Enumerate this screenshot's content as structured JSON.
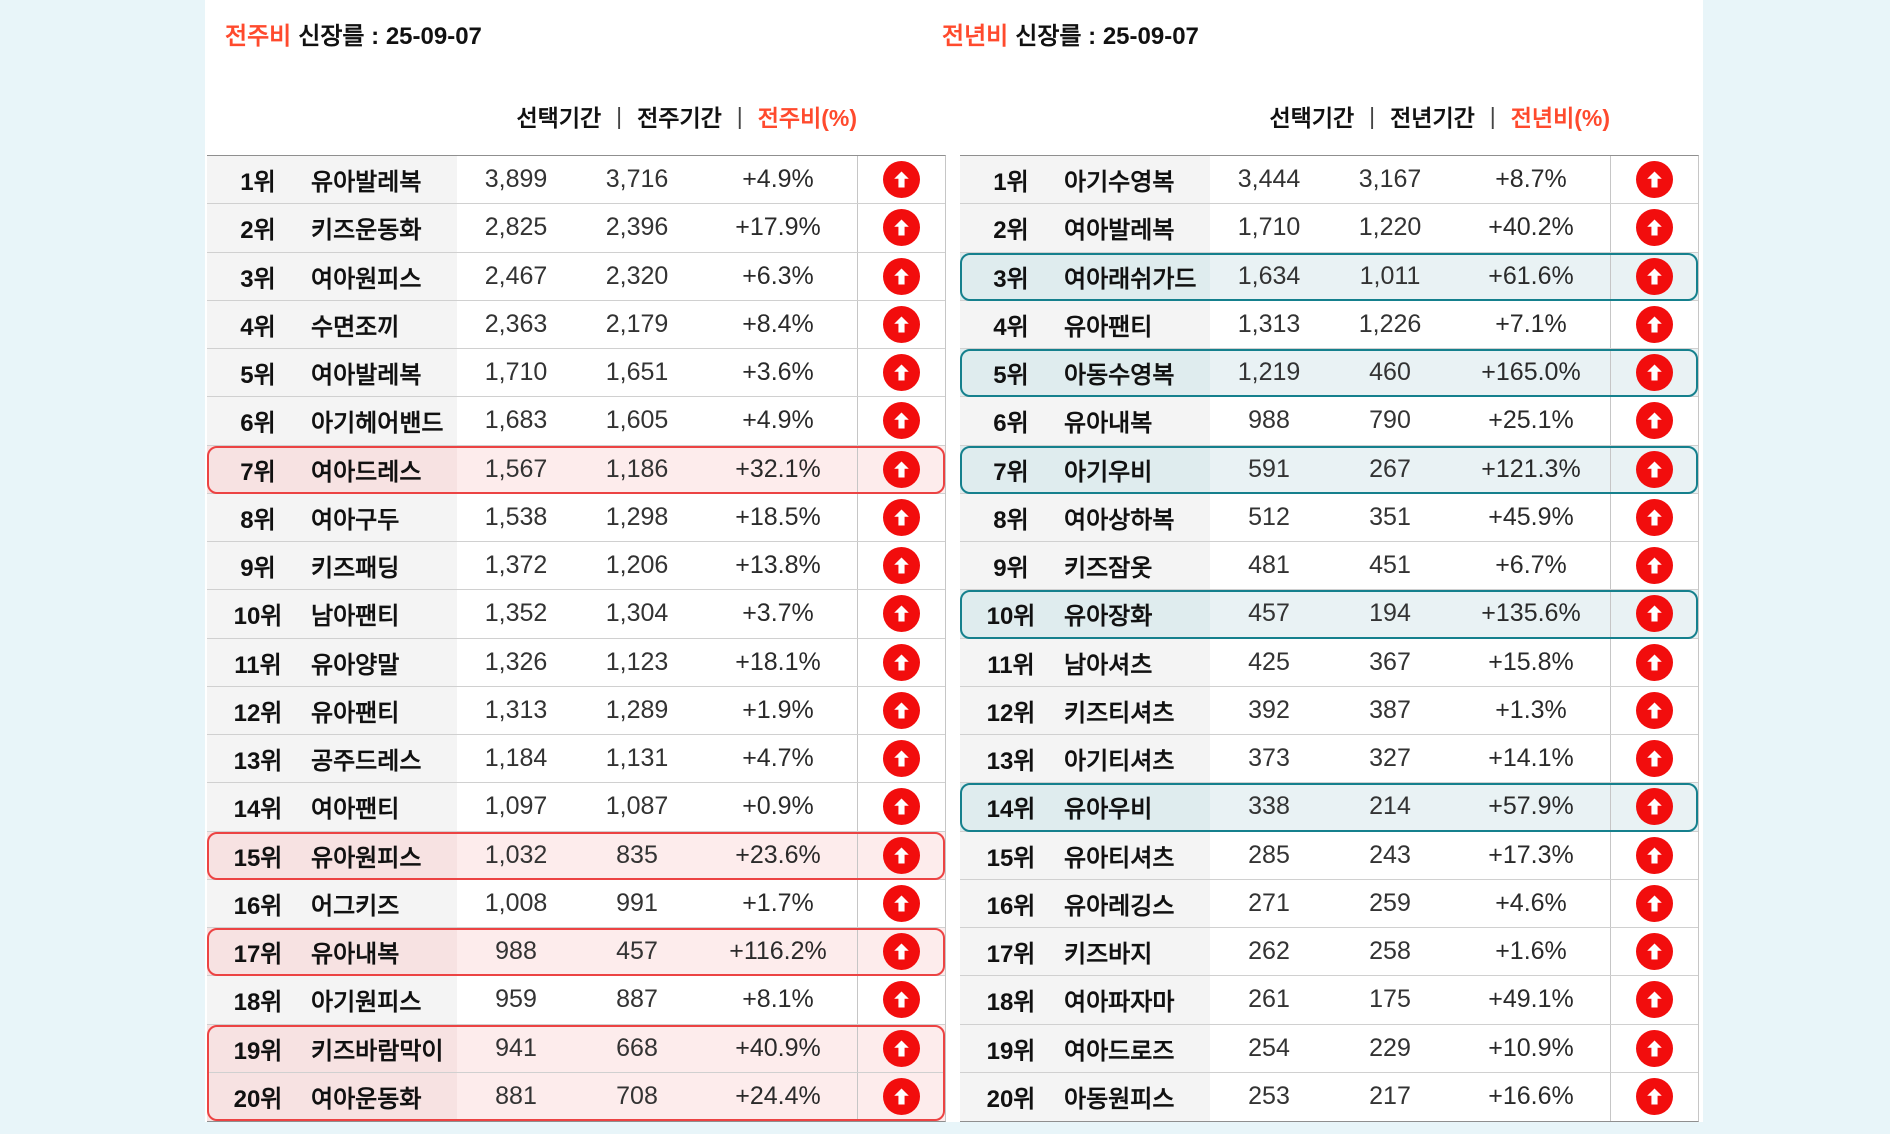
{
  "page": {
    "background_color": "#e8f5f9",
    "panel_color": "#ffffff",
    "accent_color": "#ff4a2d",
    "arrow_color": "#f20d0d",
    "icons": {
      "growth": "up-arrow-in-red-circle"
    }
  },
  "left": {
    "title_accent": "전주비",
    "title_rest": "신장를 : 25-09-07",
    "headers": [
      "선택기간",
      "전주기간",
      "전주비(%)"
    ],
    "pipe": "|",
    "highlight_border": "#ec4343",
    "rows": [
      {
        "rank": "1위",
        "name": "유아발레복",
        "current": "3,899",
        "prev": "3,716",
        "pct": "+4.9%",
        "hl": false
      },
      {
        "rank": "2위",
        "name": "키즈운동화",
        "current": "2,825",
        "prev": "2,396",
        "pct": "+17.9%",
        "hl": false
      },
      {
        "rank": "3위",
        "name": "여아원피스",
        "current": "2,467",
        "prev": "2,320",
        "pct": "+6.3%",
        "hl": false
      },
      {
        "rank": "4위",
        "name": "수면조끼",
        "current": "2,363",
        "prev": "2,179",
        "pct": "+8.4%",
        "hl": false
      },
      {
        "rank": "5위",
        "name": "여아발레복",
        "current": "1,710",
        "prev": "1,651",
        "pct": "+3.6%",
        "hl": false
      },
      {
        "rank": "6위",
        "name": "아기헤어밴드",
        "current": "1,683",
        "prev": "1,605",
        "pct": "+4.9%",
        "hl": false
      },
      {
        "rank": "7위",
        "name": "여아드레스",
        "current": "1,567",
        "prev": "1,186",
        "pct": "+32.1%",
        "hl": true
      },
      {
        "rank": "8위",
        "name": "여아구두",
        "current": "1,538",
        "prev": "1,298",
        "pct": "+18.5%",
        "hl": false
      },
      {
        "rank": "9위",
        "name": "키즈패딩",
        "current": "1,372",
        "prev": "1,206",
        "pct": "+13.8%",
        "hl": false
      },
      {
        "rank": "10위",
        "name": "남아팬티",
        "current": "1,352",
        "prev": "1,304",
        "pct": "+3.7%",
        "hl": false
      },
      {
        "rank": "11위",
        "name": "유아양말",
        "current": "1,326",
        "prev": "1,123",
        "pct": "+18.1%",
        "hl": false
      },
      {
        "rank": "12위",
        "name": "유아팬티",
        "current": "1,313",
        "prev": "1,289",
        "pct": "+1.9%",
        "hl": false
      },
      {
        "rank": "13위",
        "name": "공주드레스",
        "current": "1,184",
        "prev": "1,131",
        "pct": "+4.7%",
        "hl": false
      },
      {
        "rank": "14위",
        "name": "여아팬티",
        "current": "1,097",
        "prev": "1,087",
        "pct": "+0.9%",
        "hl": false
      },
      {
        "rank": "15위",
        "name": "유아원피스",
        "current": "1,032",
        "prev": "835",
        "pct": "+23.6%",
        "hl": true
      },
      {
        "rank": "16위",
        "name": "어그키즈",
        "current": "1,008",
        "prev": "991",
        "pct": "+1.7%",
        "hl": false
      },
      {
        "rank": "17위",
        "name": "유아내복",
        "current": "988",
        "prev": "457",
        "pct": "+116.2%",
        "hl": true
      },
      {
        "rank": "18위",
        "name": "아기원피스",
        "current": "959",
        "prev": "887",
        "pct": "+8.1%",
        "hl": false
      },
      {
        "rank": "19위",
        "name": "키즈바람막이",
        "current": "941",
        "prev": "668",
        "pct": "+40.9%",
        "hl": true
      },
      {
        "rank": "20위",
        "name": "여아운동화",
        "current": "881",
        "prev": "708",
        "pct": "+24.4%",
        "hl": true
      }
    ]
  },
  "right": {
    "title_accent": "전년비",
    "title_rest": "신장를 : 25-09-07",
    "headers": [
      "선택기간",
      "전년기간",
      "전년비(%)"
    ],
    "pipe": "|",
    "highlight_border": "#15808d",
    "rows": [
      {
        "rank": "1위",
        "name": "아기수영복",
        "current": "3,444",
        "prev": "3,167",
        "pct": "+8.7%",
        "hl": false
      },
      {
        "rank": "2위",
        "name": "여아발레복",
        "current": "1,710",
        "prev": "1,220",
        "pct": "+40.2%",
        "hl": false
      },
      {
        "rank": "3위",
        "name": "여아래쉬가드",
        "current": "1,634",
        "prev": "1,011",
        "pct": "+61.6%",
        "hl": true
      },
      {
        "rank": "4위",
        "name": "유아팬티",
        "current": "1,313",
        "prev": "1,226",
        "pct": "+7.1%",
        "hl": false
      },
      {
        "rank": "5위",
        "name": "아동수영복",
        "current": "1,219",
        "prev": "460",
        "pct": "+165.0%",
        "hl": true
      },
      {
        "rank": "6위",
        "name": "유아내복",
        "current": "988",
        "prev": "790",
        "pct": "+25.1%",
        "hl": false
      },
      {
        "rank": "7위",
        "name": "아기우비",
        "current": "591",
        "prev": "267",
        "pct": "+121.3%",
        "hl": true
      },
      {
        "rank": "8위",
        "name": "여아상하복",
        "current": "512",
        "prev": "351",
        "pct": "+45.9%",
        "hl": false
      },
      {
        "rank": "9위",
        "name": "키즈잠옷",
        "current": "481",
        "prev": "451",
        "pct": "+6.7%",
        "hl": false
      },
      {
        "rank": "10위",
        "name": "유아장화",
        "current": "457",
        "prev": "194",
        "pct": "+135.6%",
        "hl": true
      },
      {
        "rank": "11위",
        "name": "남아셔츠",
        "current": "425",
        "prev": "367",
        "pct": "+15.8%",
        "hl": false
      },
      {
        "rank": "12위",
        "name": "키즈티셔츠",
        "current": "392",
        "prev": "387",
        "pct": "+1.3%",
        "hl": false
      },
      {
        "rank": "13위",
        "name": "아기티셔츠",
        "current": "373",
        "prev": "327",
        "pct": "+14.1%",
        "hl": false
      },
      {
        "rank": "14위",
        "name": "유아우비",
        "current": "338",
        "prev": "214",
        "pct": "+57.9%",
        "hl": true
      },
      {
        "rank": "15위",
        "name": "유아티셔츠",
        "current": "285",
        "prev": "243",
        "pct": "+17.3%",
        "hl": false
      },
      {
        "rank": "16위",
        "name": "유아레깅스",
        "current": "271",
        "prev": "259",
        "pct": "+4.6%",
        "hl": false
      },
      {
        "rank": "17위",
        "name": "키즈바지",
        "current": "262",
        "prev": "258",
        "pct": "+1.6%",
        "hl": false
      },
      {
        "rank": "18위",
        "name": "여아파자마",
        "current": "261",
        "prev": "175",
        "pct": "+49.1%",
        "hl": false
      },
      {
        "rank": "19위",
        "name": "여아드로즈",
        "current": "254",
        "prev": "229",
        "pct": "+10.9%",
        "hl": false
      },
      {
        "rank": "20위",
        "name": "아동원피스",
        "current": "253",
        "prev": "217",
        "pct": "+16.6%",
        "hl": false
      }
    ]
  }
}
